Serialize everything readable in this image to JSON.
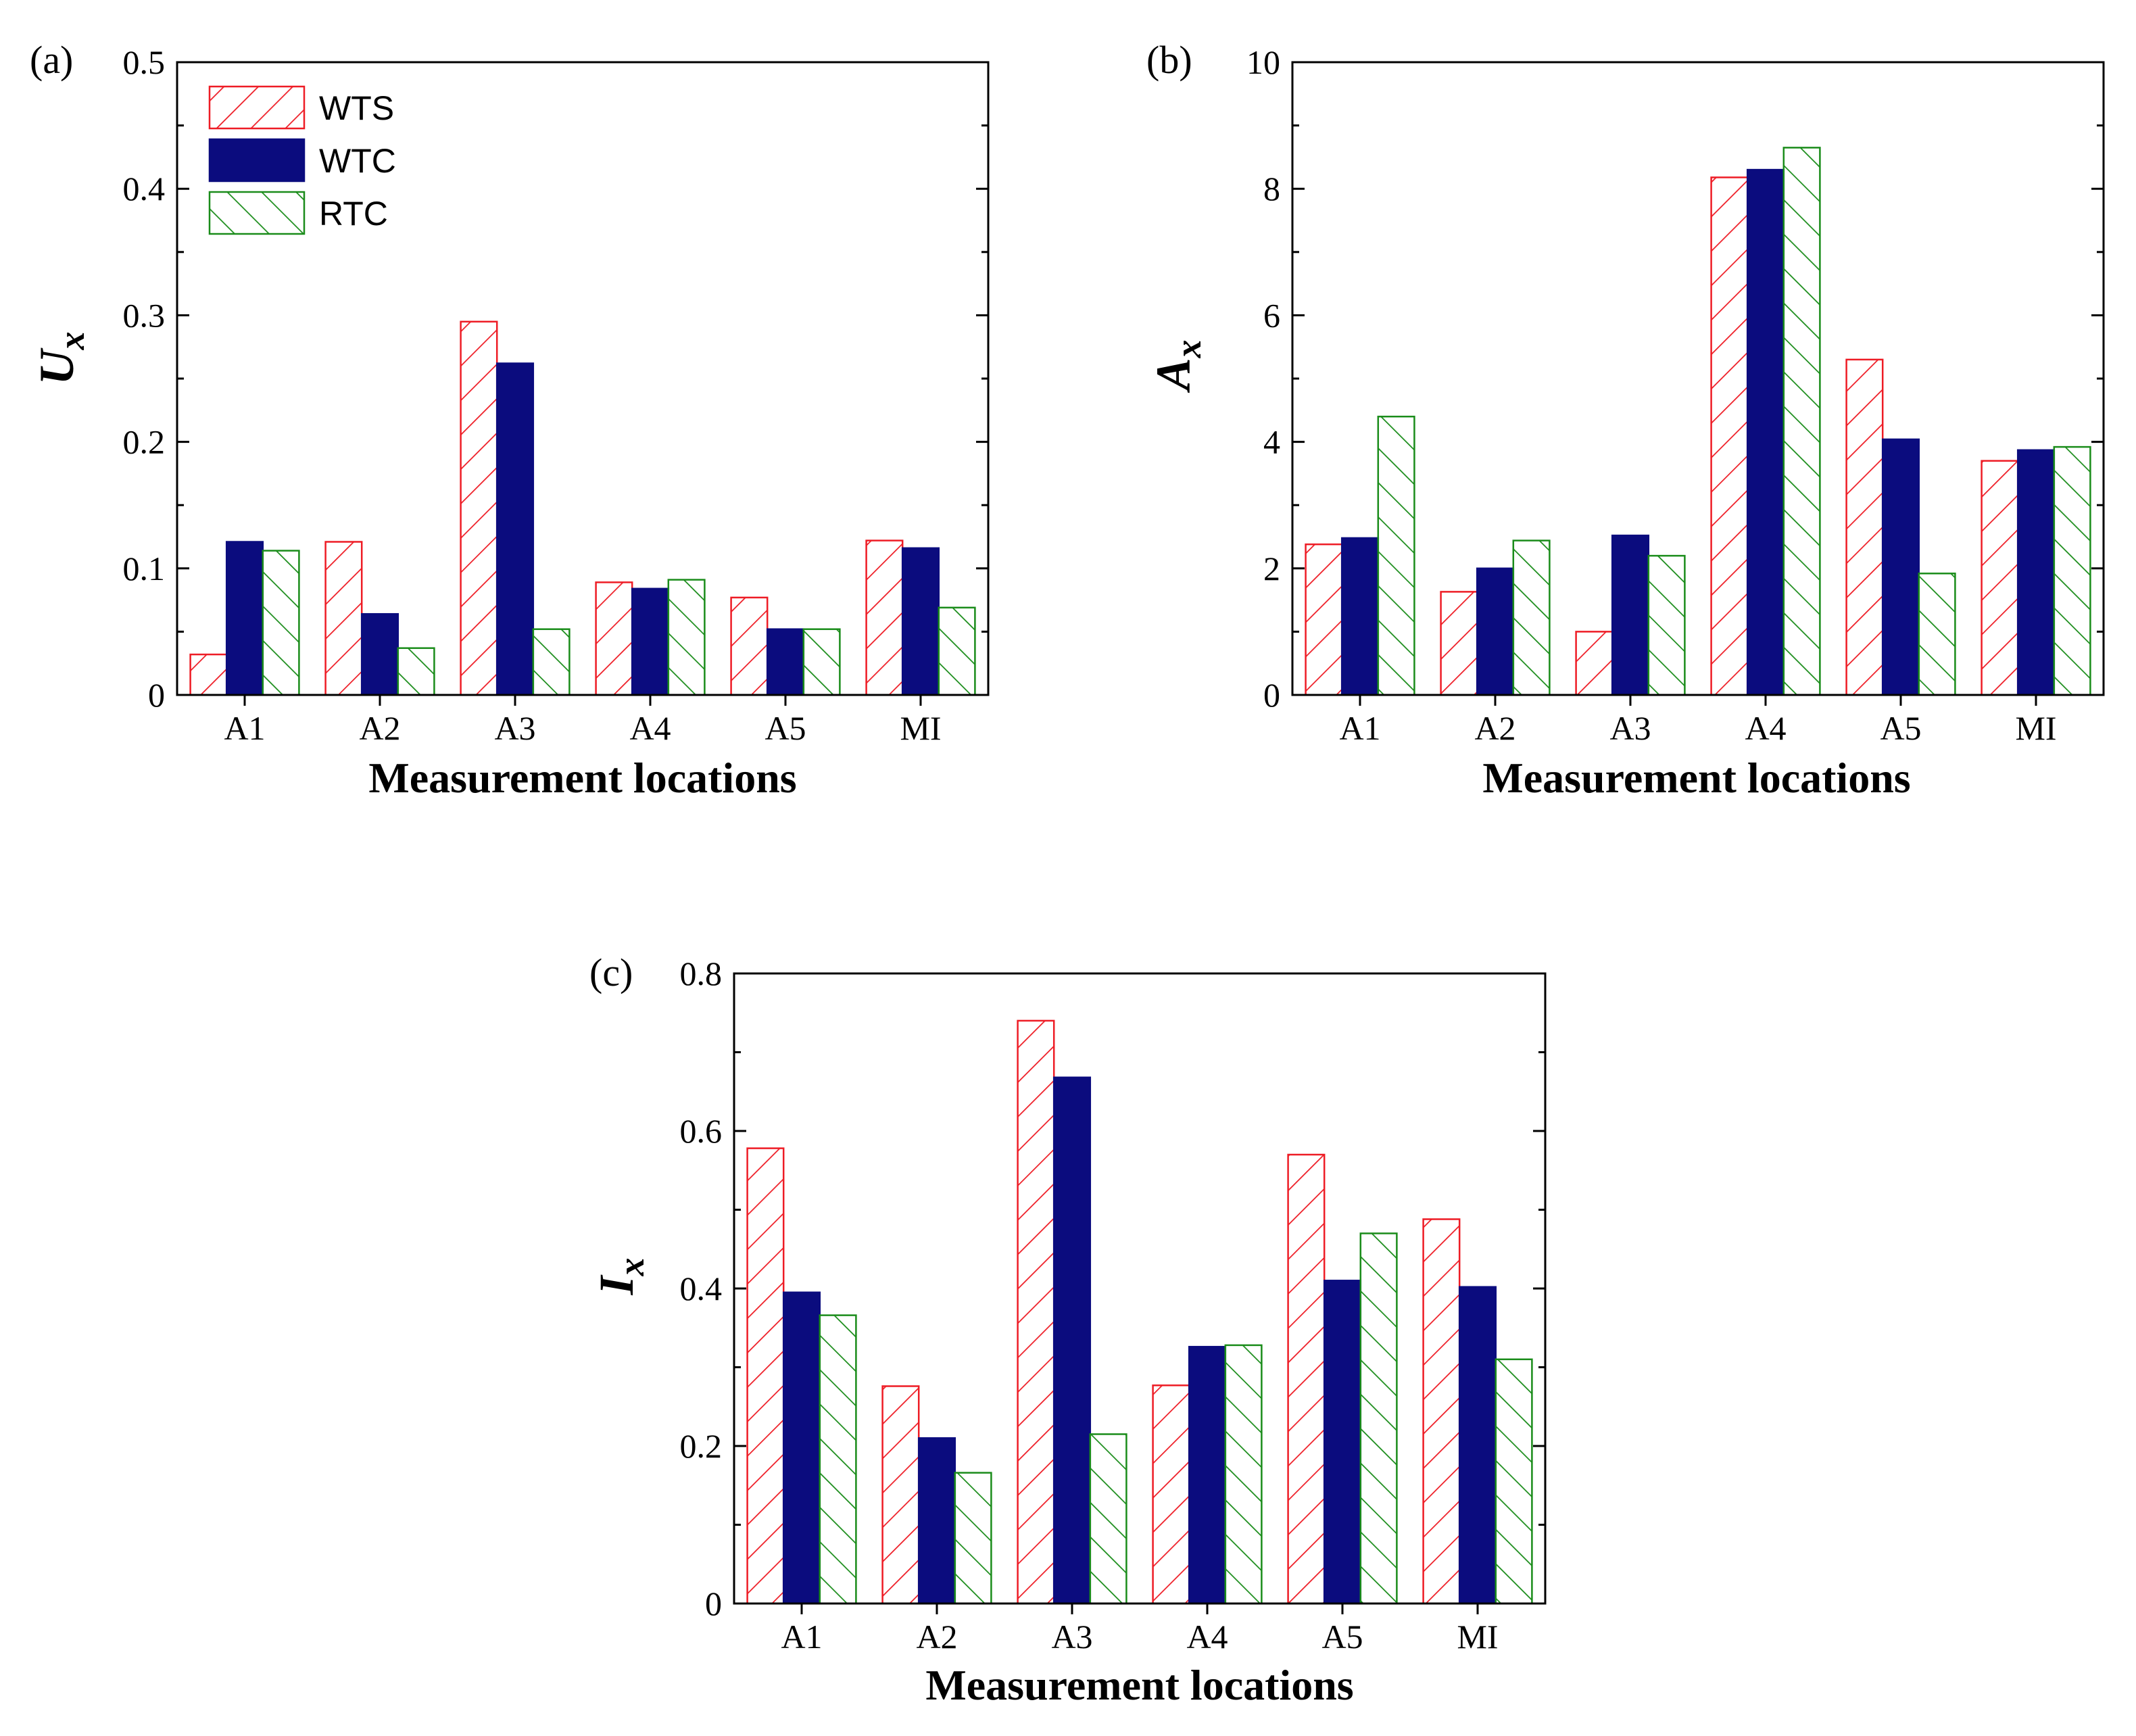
{
  "series_styles": [
    {
      "name": "WTS",
      "color": "#ee1c25",
      "pattern": "hatch-forward"
    },
    {
      "name": "WTC",
      "color": "#0b0c7e",
      "pattern": "solid"
    },
    {
      "name": "RTC",
      "color": "#1a8c1a",
      "pattern": "hatch-backward"
    }
  ],
  "chart_data": [
    {
      "type": "bar",
      "panel_label": "(a)",
      "title": "",
      "xlabel": "Measurement locations",
      "ylabel": "U",
      "ylabel_sub": "x",
      "categories": [
        "A1",
        "A2",
        "A3",
        "A4",
        "A5",
        "MI"
      ],
      "ylim": [
        0,
        0.5
      ],
      "yticks": [
        0,
        0.1,
        0.2,
        0.3,
        0.4,
        0.5
      ],
      "ytick_labels": [
        "0",
        "0.1",
        "0.2",
        "0.3",
        "0.4",
        "0.5"
      ],
      "legend": [
        "WTS",
        "WTC",
        "RTC"
      ],
      "legend_position": "top-left",
      "series": [
        {
          "name": "WTS",
          "values": [
            0.032,
            0.121,
            0.295,
            0.089,
            0.077,
            0.122
          ]
        },
        {
          "name": "WTC",
          "values": [
            0.121,
            0.064,
            0.262,
            0.084,
            0.052,
            0.116
          ]
        },
        {
          "name": "RTC",
          "values": [
            0.114,
            0.037,
            0.052,
            0.091,
            0.052,
            0.069
          ]
        }
      ]
    },
    {
      "type": "bar",
      "panel_label": "(b)",
      "title": "",
      "xlabel": "Measurement locations",
      "ylabel": "A",
      "ylabel_sub": "x",
      "categories": [
        "A1",
        "A2",
        "A3",
        "A4",
        "A5",
        "MI"
      ],
      "ylim": [
        0,
        10
      ],
      "yticks": [
        0,
        2,
        4,
        6,
        8,
        10
      ],
      "ytick_labels": [
        "0",
        "2",
        "4",
        "6",
        "8",
        "10"
      ],
      "series": [
        {
          "name": "WTS",
          "values": [
            2.38,
            1.63,
            1.0,
            8.18,
            5.3,
            3.7
          ]
        },
        {
          "name": "WTC",
          "values": [
            2.48,
            2.0,
            2.52,
            8.3,
            4.04,
            3.87
          ]
        },
        {
          "name": "RTC",
          "values": [
            4.4,
            2.44,
            2.2,
            8.65,
            1.92,
            3.92
          ]
        }
      ]
    },
    {
      "type": "bar",
      "panel_label": "(c)",
      "title": "",
      "xlabel": "Measurement locations",
      "ylabel": "I",
      "ylabel_sub": "x",
      "categories": [
        "A1",
        "A2",
        "A3",
        "A4",
        "A5",
        "MI"
      ],
      "ylim": [
        0,
        0.8
      ],
      "yticks": [
        0,
        0.2,
        0.4,
        0.6,
        0.8
      ],
      "ytick_labels": [
        "0",
        "0.2",
        "0.4",
        "0.6",
        "0.8"
      ],
      "series": [
        {
          "name": "WTS",
          "values": [
            0.578,
            0.276,
            0.74,
            0.277,
            0.57,
            0.488
          ]
        },
        {
          "name": "WTC",
          "values": [
            0.395,
            0.21,
            0.668,
            0.326,
            0.41,
            0.402
          ]
        },
        {
          "name": "RTC",
          "values": [
            0.366,
            0.166,
            0.215,
            0.328,
            0.47,
            0.31
          ]
        }
      ]
    }
  ]
}
